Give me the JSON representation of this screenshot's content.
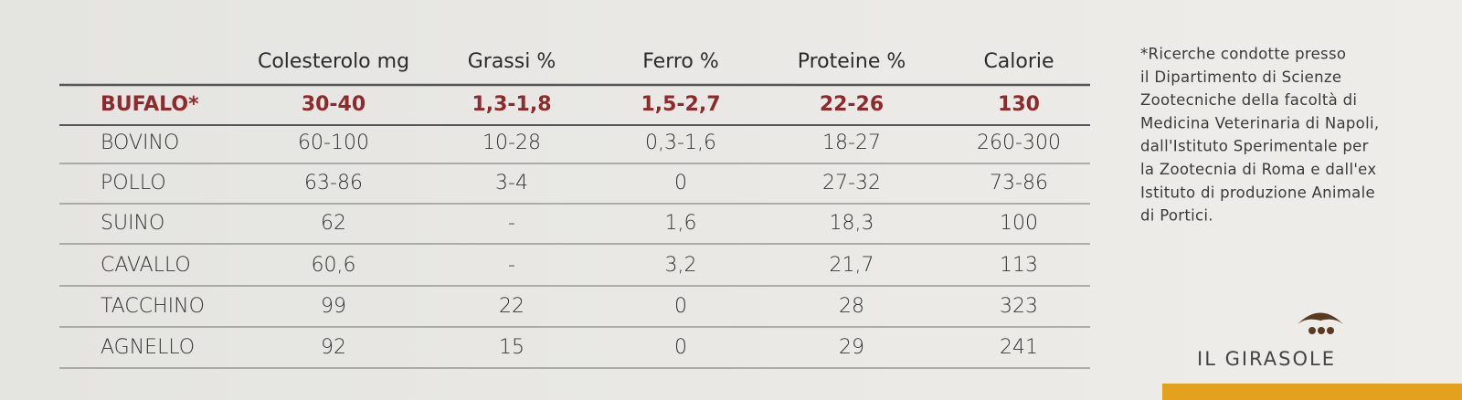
{
  "table": {
    "headers": [
      "Colesterolo mg",
      "Grassi %",
      "Ferro %",
      "Proteine %",
      "Calorie"
    ],
    "rows": [
      [
        "BUFALO*",
        "30-40",
        "1,3-1,8",
        "1,5-2,7",
        "22-26",
        "130"
      ],
      [
        "BOVINO",
        "60-100",
        "10-28",
        "0,3-1,6",
        "18-27",
        "260-300"
      ],
      [
        "POLLO",
        "63-86",
        "3-4",
        "0",
        "27-32",
        "73-86"
      ],
      [
        "SUINO",
        "62",
        "-",
        "1,6",
        "18,3",
        "100"
      ],
      [
        "CAVALLO",
        "60,6",
        "-",
        "3,2",
        "21,7",
        "113"
      ],
      [
        "TACCHINO",
        "99",
        "22",
        "0",
        "28",
        "323"
      ],
      [
        "AGNELLO",
        "92",
        "15",
        "0",
        "29",
        "241"
      ]
    ]
  },
  "note": {
    "lines": [
      "*Ricerche condotte presso",
      "il Dipartimento di Scienze",
      "Zootecniche della facoltà di",
      "Medicina Veterinaria di Napoli,",
      "dall'Istituto Sperimentale per",
      "la Zootecnia di Roma e dall'ex",
      "Istituto di produzione Animale",
      "di Portici."
    ]
  },
  "logo": {
    "text": "IL GIRASOLE"
  }
}
